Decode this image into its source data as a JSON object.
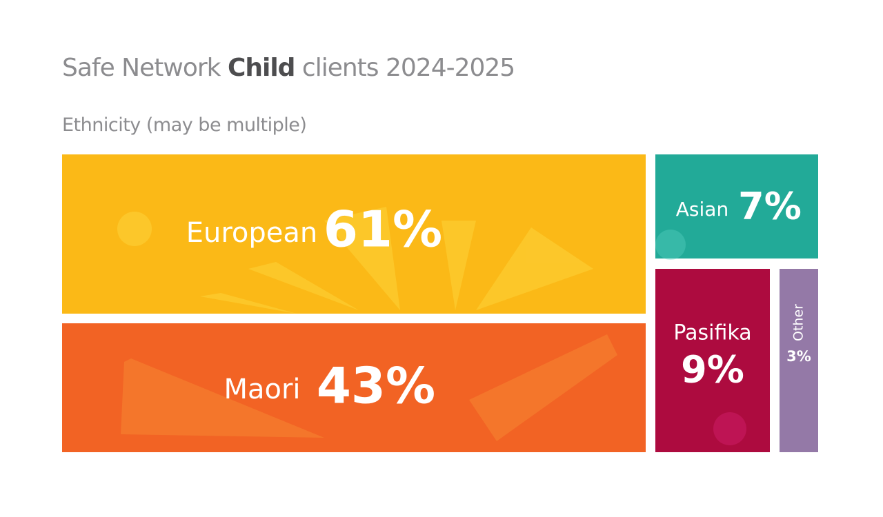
{
  "chart_data": {
    "type": "treemap",
    "title_parts": [
      "Safe Network",
      "Child",
      "clients 2024-2025"
    ],
    "subtitle": "Ethnicity (may be multiple)",
    "categories": [
      "European",
      "Maori",
      "Asian",
      "Pasifika",
      "Other"
    ],
    "values": [
      61,
      43,
      7,
      9,
      3
    ],
    "value_labels": [
      "61%",
      "43%",
      "7%",
      "9%",
      "3%"
    ],
    "colors": [
      "#fbb917",
      "#f26324",
      "#22aa98",
      "#ad0b3f",
      "#9479a7"
    ]
  }
}
